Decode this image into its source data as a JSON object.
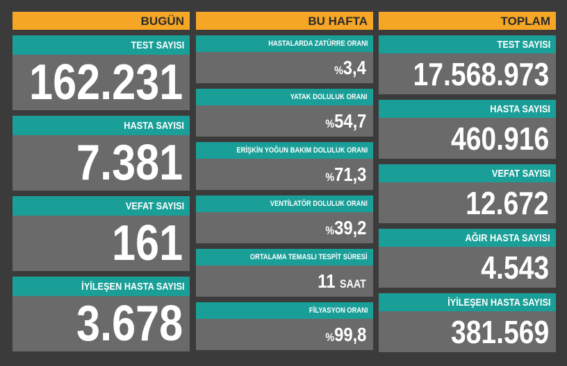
{
  "columns": [
    {
      "title": "BUGÜN",
      "cards": [
        {
          "label": "TEST SAYISI",
          "value": "162.231"
        },
        {
          "label": "HASTA SAYISI",
          "value": "7.381"
        },
        {
          "label": "VEFAT SAYISI",
          "value": "161"
        },
        {
          "label": "İYİLEŞEN HASTA SAYISI",
          "value": "3.678"
        }
      ]
    },
    {
      "title": "BU HAFTA",
      "cards": [
        {
          "label": "HASTALARDA ZATÜRRE ORANI",
          "prefix": "%",
          "value": "3,4"
        },
        {
          "label": "YATAK DOLULUK ORANI",
          "prefix": "%",
          "value": "54,7"
        },
        {
          "label": "ERİŞKİN YOĞUN BAKIM DOLULUK ORANI",
          "prefix": "%",
          "value": "71,3"
        },
        {
          "label": "VENTİLATÖR DOLULUK ORANI",
          "prefix": "%",
          "value": "39,2"
        },
        {
          "label": "ORTALAMA TEMASLI TESPİT SÜRESİ",
          "value": "11",
          "suffix": "SAAT"
        },
        {
          "label": "FİLYASYON ORANI",
          "prefix": "%",
          "value": "99,8"
        }
      ]
    },
    {
      "title": "TOPLAM",
      "cards": [
        {
          "label": "TEST SAYISI",
          "value": "17.568.973"
        },
        {
          "label": "HASTA SAYISI",
          "value": "460.916"
        },
        {
          "label": "VEFAT SAYISI",
          "value": "12.672"
        },
        {
          "label": "AĞIR HASTA SAYISI",
          "value": "4.543"
        },
        {
          "label": "İYİLEŞEN HASTA SAYISI",
          "value": "381.569"
        }
      ]
    }
  ]
}
